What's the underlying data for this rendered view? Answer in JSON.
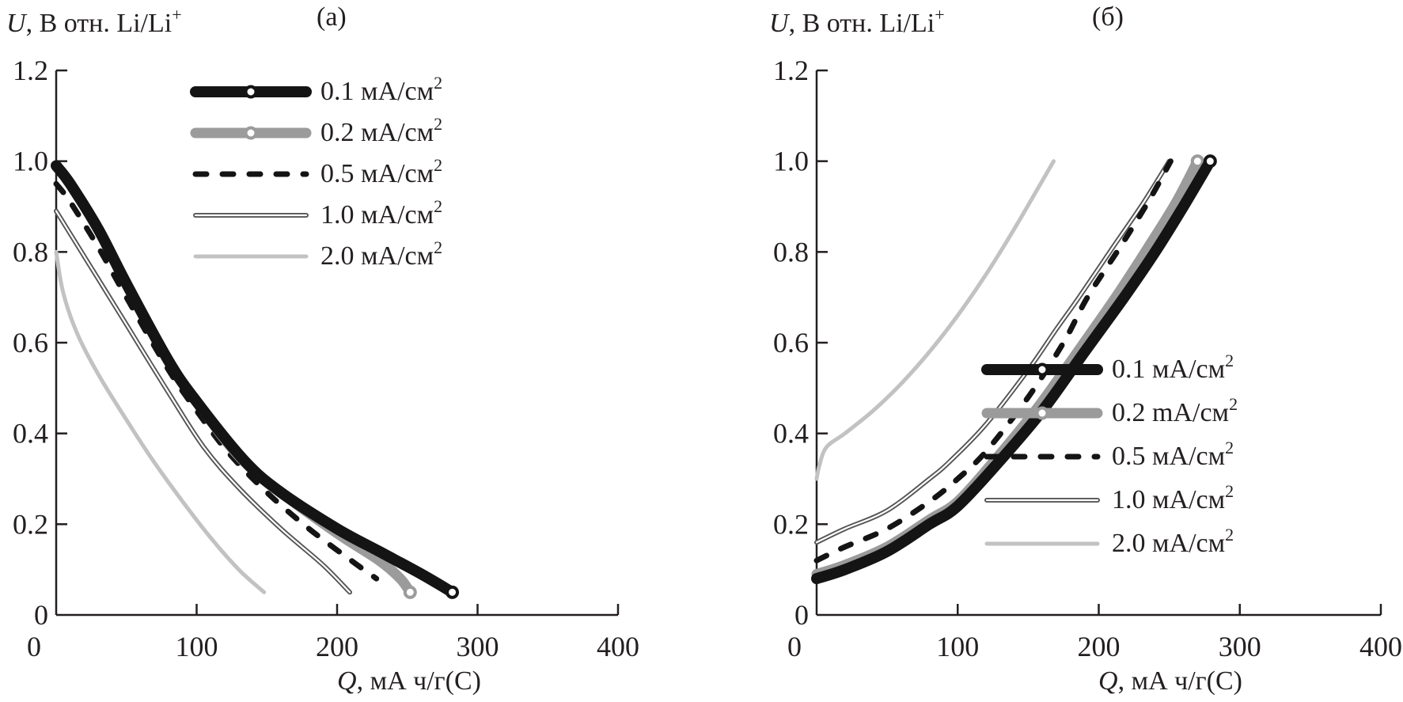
{
  "chart_data": [
    {
      "type": "line",
      "panel_label": "(а)",
      "ylabel_italic": "U",
      "ylabel_rest": ", В отн. Li/Li",
      "ylabel_sup": "+",
      "xlabel_italic": "Q",
      "xlabel_rest": ", мА ч/г(С)",
      "xlim": [
        0,
        400
      ],
      "ylim": [
        0,
        1.2
      ],
      "xticks": [
        0,
        100,
        200,
        300,
        400
      ],
      "xtick_labels": [
        "0",
        "100",
        "200",
        "300",
        "400"
      ],
      "yticks": [
        0,
        0.2,
        0.4,
        0.6,
        0.8,
        1.0,
        1.2
      ],
      "ytick_labels": [
        "0",
        "0.2",
        "0.4",
        "0.6",
        "0.8",
        "1.0",
        "1.2"
      ],
      "grid": false,
      "legend_position": "top-right",
      "series": [
        {
          "name": "0.1 мА/см",
          "sup": "2",
          "style": "solid-marker-black",
          "color": "#1a1a1a",
          "x": [
            0,
            10,
            30,
            50,
            80,
            100,
            134,
            160,
            200,
            230,
            260,
            282
          ],
          "y": [
            0.99,
            0.95,
            0.85,
            0.73,
            0.56,
            0.47,
            0.34,
            0.27,
            0.19,
            0.14,
            0.09,
            0.05
          ]
        },
        {
          "name": "0.2 мА/см",
          "sup": "2",
          "style": "solid-marker-gray",
          "color": "#9a9a9a",
          "x": [
            0,
            10,
            30,
            50,
            80,
            100,
            130,
            160,
            200,
            230,
            245,
            252
          ],
          "y": [
            0.99,
            0.95,
            0.85,
            0.73,
            0.56,
            0.47,
            0.35,
            0.27,
            0.18,
            0.12,
            0.08,
            0.05
          ]
        },
        {
          "name": "0.5 мА/см",
          "sup": "2",
          "style": "dashed-black",
          "color": "#1a1a1a",
          "x": [
            0,
            10,
            30,
            50,
            80,
            100,
            122,
            150,
            180,
            210,
            228
          ],
          "y": [
            0.95,
            0.91,
            0.81,
            0.7,
            0.54,
            0.45,
            0.36,
            0.27,
            0.19,
            0.12,
            0.08
          ]
        },
        {
          "name": "1.0 мА/см",
          "sup": "2",
          "style": "double-line",
          "color": "#555555",
          "x": [
            0,
            10,
            30,
            50,
            80,
            105,
            130,
            160,
            190,
            209
          ],
          "y": [
            0.89,
            0.84,
            0.74,
            0.64,
            0.49,
            0.37,
            0.28,
            0.19,
            0.11,
            0.05
          ]
        },
        {
          "name": "2.0 мА/см",
          "sup": "2",
          "style": "solid-light-gray",
          "color": "#bdbdbd",
          "x": [
            0,
            5,
            15,
            30,
            50,
            69,
            90,
            110,
            130,
            148
          ],
          "y": [
            0.8,
            0.71,
            0.62,
            0.53,
            0.43,
            0.34,
            0.25,
            0.17,
            0.1,
            0.05
          ]
        }
      ]
    },
    {
      "type": "line",
      "panel_label": "(б)",
      "ylabel_italic": "U",
      "ylabel_rest": ", В отн. Li/Li",
      "ylabel_sup": "+",
      "xlabel_italic": "Q",
      "xlabel_rest": ", мА ч/г(С)",
      "xlim": [
        0,
        400
      ],
      "ylim": [
        0,
        1.2
      ],
      "xticks": [
        0,
        100,
        200,
        300,
        400
      ],
      "xtick_labels": [
        "0",
        "100",
        "200",
        "300",
        "400"
      ],
      "yticks": [
        0,
        0.2,
        0.4,
        0.6,
        0.8,
        1.0,
        1.2
      ],
      "ytick_labels": [
        "0",
        "0.2",
        "0.4",
        "0.6",
        "0.8",
        "1.0",
        "1.2"
      ],
      "grid": false,
      "legend_position": "bottom-right",
      "series": [
        {
          "name": "0.1 мА/см",
          "sup": "2",
          "style": "solid-marker-black",
          "color": "#1a1a1a",
          "x": [
            0,
            20,
            50,
            80,
            100,
            130,
            160,
            190,
            218,
            240,
            260,
            279
          ],
          "y": [
            0.08,
            0.1,
            0.14,
            0.2,
            0.24,
            0.34,
            0.45,
            0.58,
            0.7,
            0.8,
            0.9,
            1.0
          ]
        },
        {
          "name": "0.2 mA/см",
          "sup": "2",
          "style": "solid-marker-gray",
          "color": "#9a9a9a",
          "x": [
            0,
            20,
            50,
            80,
            100,
            126,
            155,
            185,
            212,
            235,
            255,
            270
          ],
          "y": [
            0.09,
            0.11,
            0.15,
            0.21,
            0.25,
            0.34,
            0.45,
            0.58,
            0.7,
            0.81,
            0.91,
            1.0
          ]
        },
        {
          "name": "0.5 мА/см",
          "sup": "2",
          "style": "dashed-black",
          "color": "#1a1a1a",
          "x": [
            0,
            20,
            50,
            80,
            100,
            120,
            150,
            175,
            192,
            215,
            235,
            251
          ],
          "y": [
            0.12,
            0.15,
            0.19,
            0.25,
            0.3,
            0.36,
            0.48,
            0.6,
            0.7,
            0.81,
            0.91,
            1.0
          ]
        },
        {
          "name": "1.0 мА/см",
          "sup": "2",
          "style": "double-line",
          "color": "#555555",
          "x": [
            0,
            20,
            50,
            80,
            95,
            120,
            150,
            170,
            186,
            210,
            232,
            250
          ],
          "y": [
            0.16,
            0.19,
            0.23,
            0.3,
            0.34,
            0.42,
            0.54,
            0.63,
            0.7,
            0.81,
            0.91,
            1.0
          ]
        },
        {
          "name": "2.0 мА/см",
          "sup": "2",
          "style": "solid-light-gray",
          "color": "#bdbdbd",
          "x": [
            0,
            2,
            7,
            20,
            40,
            60,
            80,
            100,
            120,
            140,
            155,
            168
          ],
          "y": [
            0.3,
            0.33,
            0.37,
            0.4,
            0.45,
            0.51,
            0.58,
            0.66,
            0.75,
            0.85,
            0.93,
            1.0
          ]
        }
      ]
    }
  ]
}
